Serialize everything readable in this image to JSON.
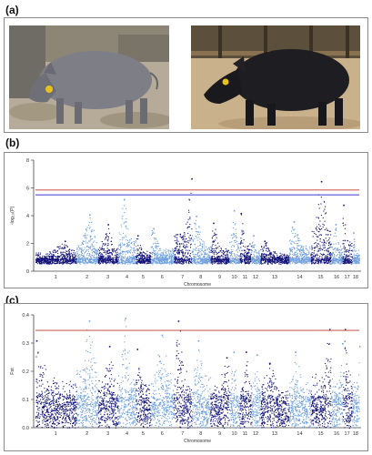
{
  "panels": {
    "a": {
      "label": "(a)"
    },
    "b": {
      "label": "(b)"
    },
    "c": {
      "label": "(c)"
    }
  },
  "photos": [
    {
      "subject": "grey pig standing on dirt ground in pen",
      "ear_tag_color": "#e8c21a"
    },
    {
      "subject": "black pig walking on sandy ground near fence",
      "ear_tag_color": "#e8c21a"
    }
  ],
  "chart_data": [
    {
      "type": "scatter",
      "subtype": "manhattan",
      "xlabel": "Chromosome",
      "ylabel": "-log₁₀(P)",
      "ylim": [
        0,
        8
      ],
      "yticks": [
        "0",
        "2",
        "4",
        "6",
        "8"
      ],
      "chromosomes": [
        "1",
        "2",
        "3",
        "4",
        "5",
        "6",
        "7",
        "8",
        "9",
        "10",
        "11",
        "12",
        "13",
        "14",
        "15",
        "16",
        "17",
        "18"
      ],
      "chromosome_widths": [
        3.0,
        1.6,
        1.5,
        1.3,
        1.1,
        1.7,
        1.3,
        1.4,
        1.4,
        0.75,
        0.85,
        0.7,
        2.1,
        1.6,
        1.5,
        0.85,
        0.7,
        0.55
      ],
      "chromosome_peak": [
        2.2,
        4.1,
        3.4,
        5.2,
        2.6,
        3.1,
        6.7,
        4.0,
        3.5,
        4.4,
        4.2,
        2.6,
        2.2,
        3.6,
        6.5,
        3.4,
        4.8,
        2.8
      ],
      "floor": 0.55,
      "baseline": 0.9,
      "threshold_lines": [
        {
          "value": 5.85,
          "color": "#c0392b"
        },
        {
          "value": 5.5,
          "color": "#3a3ad6"
        }
      ],
      "grid": false,
      "colors": [
        "#13137a",
        "#6f9fde"
      ]
    },
    {
      "type": "scatter",
      "subtype": "manhattan",
      "xlabel": "Chromosome",
      "ylabel": "Fst",
      "ylim": [
        0,
        0.4
      ],
      "yticks": [
        "0.0",
        "0.1",
        "0.2",
        "0.3",
        "0.4"
      ],
      "chromosomes": [
        "1",
        "2",
        "3",
        "4",
        "5",
        "6",
        "7",
        "8",
        "9",
        "10",
        "11",
        "12",
        "13",
        "14",
        "15",
        "16",
        "17",
        "18"
      ],
      "chromosome_widths": [
        3.0,
        1.6,
        1.5,
        1.3,
        1.1,
        1.7,
        1.3,
        1.4,
        1.4,
        0.75,
        0.85,
        0.7,
        2.1,
        1.6,
        1.5,
        0.85,
        0.7,
        0.55
      ],
      "chromosome_peak": [
        0.31,
        0.38,
        0.29,
        0.39,
        0.28,
        0.33,
        0.38,
        0.31,
        0.25,
        0.27,
        0.27,
        0.26,
        0.23,
        0.27,
        0.35,
        0.3,
        0.35,
        0.29
      ],
      "floor": 0.0,
      "baseline": 0.1,
      "threshold_lines": [
        {
          "value": 0.345,
          "color": "#c0392b"
        }
      ],
      "grid": false,
      "colors": [
        "#13137a",
        "#6f9fde"
      ]
    }
  ]
}
